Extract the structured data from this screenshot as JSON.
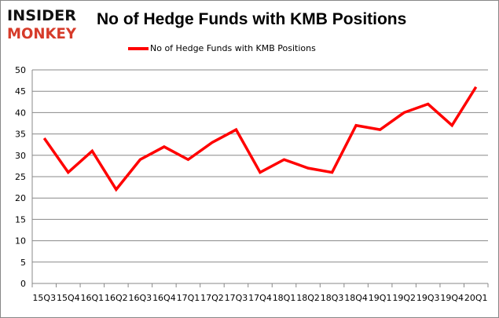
{
  "logo": {
    "line1": "INSIDER",
    "line2": "MONKEY"
  },
  "chart_data": {
    "type": "line",
    "title": "No of Hedge Funds with KMB Positions",
    "categories": [
      "15Q3",
      "15Q4",
      "16Q1",
      "16Q2",
      "16Q3",
      "16Q4",
      "17Q1",
      "17Q2",
      "17Q3",
      "17Q4",
      "18Q1",
      "18Q2",
      "18Q3",
      "18Q4",
      "19Q1",
      "19Q2",
      "19Q3",
      "19Q4",
      "20Q1"
    ],
    "series": [
      {
        "name": "No of Hedge Funds with KMB Positions",
        "color": "#ff0000",
        "values": [
          34,
          26,
          31,
          22,
          29,
          32,
          29,
          33,
          36,
          26,
          29,
          27,
          26,
          37,
          36,
          40,
          42,
          37,
          46
        ]
      }
    ],
    "yticks": [
      0,
      5,
      10,
      15,
      20,
      25,
      30,
      35,
      40,
      45,
      50
    ],
    "ylim": [
      0,
      50
    ],
    "grid": true,
    "legend": "top"
  }
}
